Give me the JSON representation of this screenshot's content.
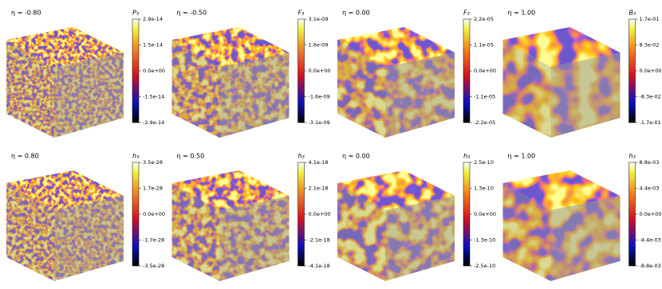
{
  "panels": [
    {
      "eta": "η = -0.80",
      "field": "P₃",
      "ticks": [
        "2.9e-14",
        "1.5e-14",
        "0.0e+00",
        "-1.5e-14",
        "-2.9e-14"
      ]
    },
    {
      "eta": "η = -0.50",
      "field": "F₃",
      "ticks": [
        "3.1e-09",
        "1.6e-09",
        "0.0e+00",
        "-1.6e-09",
        "-3.1e-09"
      ]
    },
    {
      "eta": "η = 0.00",
      "field": "F₃",
      "ticks": [
        "2.2e-05",
        "1.1e-05",
        "0.0e+00",
        "-1.1e-05",
        "-2.2e-05"
      ]
    },
    {
      "eta": "η = 1.00",
      "field": "B₃",
      "ticks": [
        "1.7e-01",
        "8.3e-02",
        "0.0e+00",
        "-8.3e-02",
        "-1.7e-01"
      ]
    },
    {
      "eta": "η = 0.80",
      "field": "h₃",
      "ticks": [
        "3.5e-28",
        "1.7e-28",
        "0.0e+00",
        "-1.7e-28",
        "-3.5e-28"
      ]
    },
    {
      "eta": "η = 0.50",
      "field": "h₃",
      "ticks": [
        "4.1e-18",
        "2.1e-18",
        "0.0e+00",
        "-2.1e-18",
        "-4.1e-18"
      ]
    },
    {
      "eta": "η = 0.00",
      "field": "h₃",
      "ticks": [
        "2.5e-10",
        "1.3e-10",
        "0.0e+00",
        "-1.3e-10",
        "-2.5e-10"
      ]
    },
    {
      "eta": "η = 1.00",
      "field": "h₃",
      "ticks": [
        "8.8e-03",
        "4.4e-03",
        "0.0e+00",
        "-4.4e-03",
        "-8.8e-03"
      ]
    }
  ]
}
